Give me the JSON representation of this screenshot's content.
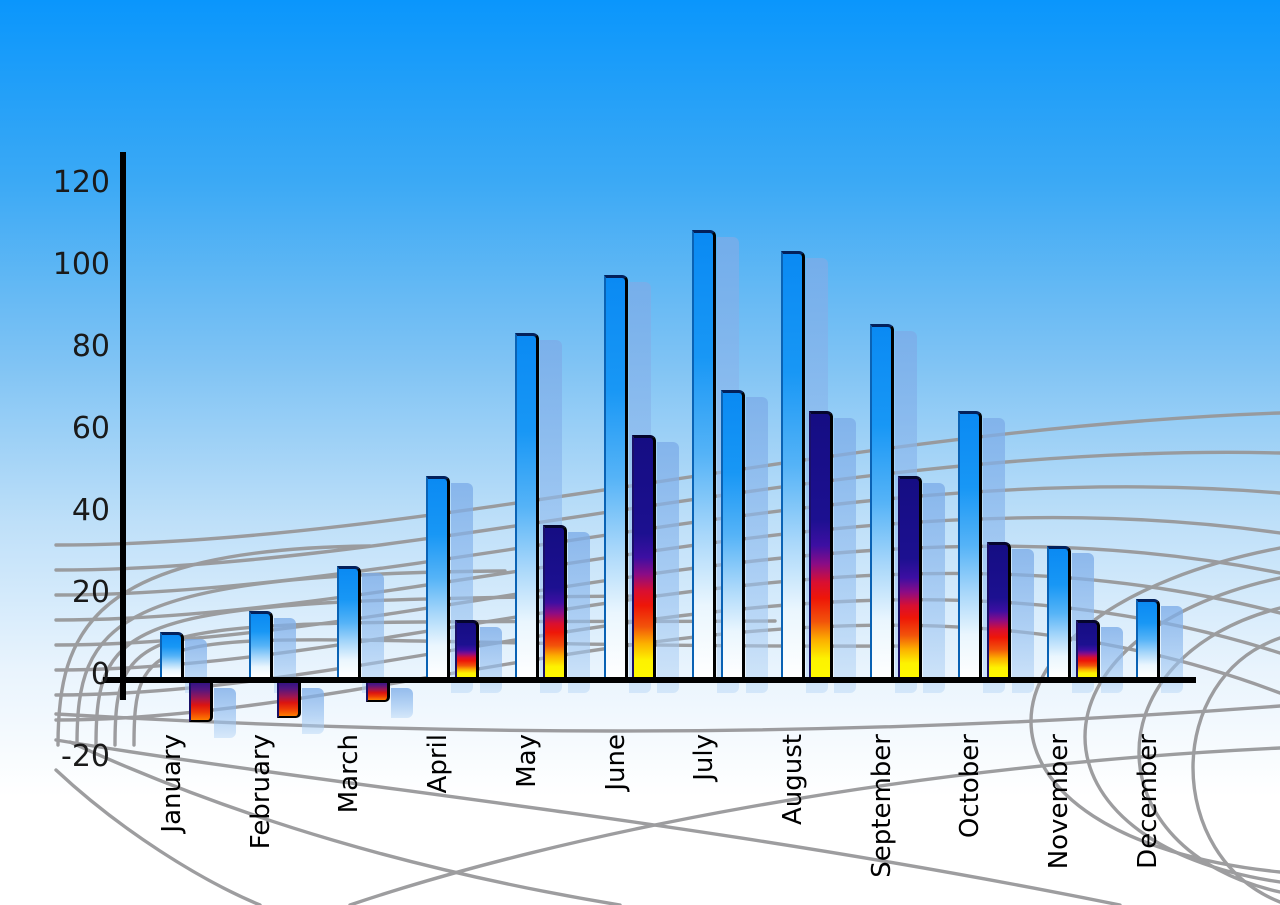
{
  "chart_data": {
    "type": "bar",
    "title": "",
    "xlabel": "",
    "ylabel": "",
    "categories": [
      "January",
      "February",
      "March",
      "April",
      "May",
      "June",
      "July",
      "August",
      "September",
      "October",
      "November",
      "December"
    ],
    "series": [
      {
        "name": "primary-blue-bars",
        "values": [
          11,
          16,
          27,
          49,
          84,
          98,
          109,
          104,
          86,
          65,
          32,
          19
        ]
      },
      {
        "name": "secondary-thermal-bars",
        "values": [
          -10,
          -9,
          -5,
          14,
          37,
          59,
          70,
          65,
          49,
          33,
          14,
          null
        ],
        "point_styles": [
          "thermal",
          "thermal",
          "thermal",
          "thermal",
          "thermal",
          "thermal",
          "blue",
          "thermal",
          "thermal",
          "thermal",
          "thermal",
          null
        ]
      }
    ],
    "ylim": [
      -20,
      120
    ],
    "yticks": [
      120,
      100,
      80,
      60,
      40,
      20,
      0,
      -20
    ],
    "grid": "decorative perspective mesh, gray",
    "legend": "none"
  },
  "colors": {
    "sky_top": "#0a96fc",
    "sky_bottom": "#ffffff",
    "bar_blue_top": "#0a8af3",
    "bar_blue_bottom": "#ffffff",
    "thermal_navy": "#1c1090",
    "thermal_red": "#ee1608",
    "thermal_yellow": "#fdf800",
    "shadow_bar": "#9cc2ee",
    "axis": "#000000",
    "grid_line": "#98989a",
    "text": "#1a1a1a"
  }
}
